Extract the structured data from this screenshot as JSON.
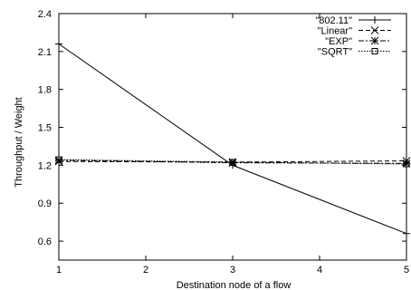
{
  "chart_data": {
    "type": "line",
    "title": "",
    "xlabel": "Destination node of a flow",
    "ylabel": "Throughput / Weight",
    "xlim": [
      1,
      5
    ],
    "ylim": [
      0.45,
      2.4
    ],
    "x_ticks": [
      "1",
      "2",
      "3",
      "4",
      "5"
    ],
    "y_ticks": [
      "0.6",
      "0.9",
      "1.2",
      "1.5",
      "1.8",
      "2.1",
      "2.4"
    ],
    "grid": false,
    "legend_position": "top-right",
    "x": [
      1,
      3,
      5
    ],
    "series": [
      {
        "name": "\"802.11\"",
        "values": [
          2.16,
          1.2,
          0.66
        ],
        "dash": "solid",
        "marker": "plus"
      },
      {
        "name": "\"Linear\"",
        "values": [
          1.23,
          1.225,
          1.235
        ],
        "dash": "dashed",
        "marker": "cross"
      },
      {
        "name": "\"EXP\"",
        "values": [
          1.24,
          1.22,
          1.215
        ],
        "dash": "dashdot",
        "marker": "star"
      },
      {
        "name": "\"SQRT\"",
        "values": [
          1.245,
          1.225,
          1.21
        ],
        "dash": "dotted",
        "marker": "square"
      }
    ]
  }
}
